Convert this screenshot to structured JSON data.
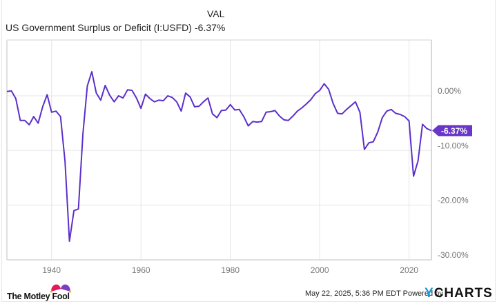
{
  "legend": {
    "header": "VAL",
    "series_name": "US Government Surplus or Deficit (I:USFD)",
    "series_value": "-6.37%"
  },
  "last_value_label": "-6.37%",
  "footer": {
    "brand_left": "The Motley Fool",
    "timestamp": "May 22, 2025, 5:36 PM EDT",
    "powered_by": "Powered by",
    "brand_right_y": "Y",
    "brand_right_rest": "CHARTS"
  },
  "colors": {
    "line": "#5b2fc9",
    "label_bg": "#6a35c9",
    "grid": "#eeeeee",
    "axis_text": "#777777"
  },
  "chart_data": {
    "type": "line",
    "title": "US Government Surplus or Deficit (I:USFD)",
    "xlabel": "",
    "ylabel": "",
    "x_ticks": [
      "1940",
      "1960",
      "1980",
      "2000",
      "2020"
    ],
    "y_ticks": [
      "0.00%",
      "-10.00%",
      "-20.00%",
      "-30.00%"
    ],
    "ylim": [
      -30,
      10.2
    ],
    "xlim": [
      1930,
      2025
    ],
    "grid": true,
    "legend_position": "top-left",
    "last_value": -6.37,
    "series": [
      {
        "name": "US Government Surplus or Deficit (I:USFD)",
        "unit": "% of GDP",
        "x": [
          1930,
          1931,
          1932,
          1933,
          1934,
          1935,
          1936,
          1937,
          1938,
          1939,
          1940,
          1941,
          1942,
          1943,
          1944,
          1945,
          1946,
          1947,
          1948,
          1949,
          1950,
          1951,
          1952,
          1953,
          1954,
          1955,
          1956,
          1957,
          1958,
          1959,
          1960,
          1961,
          1962,
          1963,
          1964,
          1965,
          1966,
          1967,
          1968,
          1969,
          1970,
          1971,
          1972,
          1973,
          1974,
          1975,
          1976,
          1977,
          1978,
          1979,
          1980,
          1981,
          1982,
          1983,
          1984,
          1985,
          1986,
          1987,
          1988,
          1989,
          1990,
          1991,
          1992,
          1993,
          1994,
          1995,
          1996,
          1997,
          1998,
          1999,
          2000,
          2001,
          2002,
          2003,
          2004,
          2005,
          2006,
          2007,
          2008,
          2009,
          2010,
          2011,
          2012,
          2013,
          2014,
          2015,
          2016,
          2017,
          2018,
          2019,
          2020,
          2021,
          2022,
          2023,
          2024,
          2025
        ],
        "values": [
          0.8,
          0.9,
          -0.5,
          -4.5,
          -4.5,
          -5.3,
          -3.8,
          -5.0,
          -2.0,
          0.2,
          -3.0,
          -2.8,
          -3.8,
          -12.0,
          -26.6,
          -21.0,
          -20.7,
          -7.0,
          1.8,
          4.4,
          0.5,
          -0.8,
          1.9,
          0.1,
          -1.1,
          0.0,
          -0.4,
          1.1,
          1.0,
          -0.4,
          -2.3,
          0.3,
          -0.5,
          -1.1,
          -0.8,
          -0.9,
          0.0,
          -0.3,
          -1.1,
          -2.8,
          0.5,
          -0.2,
          -2.0,
          -1.9,
          -1.1,
          -0.4,
          -3.3,
          -4.0,
          -2.7,
          -2.6,
          -1.6,
          -2.6,
          -2.5,
          -3.8,
          -5.5,
          -4.7,
          -4.8,
          -4.7,
          -3.0,
          -2.9,
          -2.7,
          -3.7,
          -4.4,
          -4.5,
          -3.7,
          -2.8,
          -2.2,
          -1.5,
          -0.7,
          0.4,
          1.0,
          2.2,
          1.2,
          -1.4,
          -3.2,
          -3.3,
          -2.5,
          -1.8,
          -1.1,
          -3.0,
          -9.8,
          -8.6,
          -8.4,
          -6.6,
          -4.0,
          -2.8,
          -2.5,
          -3.2,
          -3.4,
          -3.8,
          -4.6,
          -14.7,
          -11.9,
          -5.2,
          -6.0,
          -6.37
        ]
      }
    ]
  }
}
